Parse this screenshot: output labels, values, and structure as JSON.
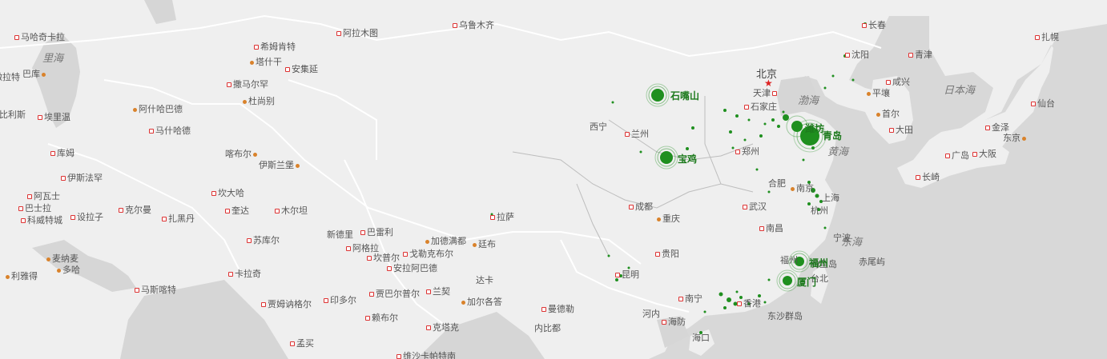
{
  "map": {
    "capital": {
      "name": "北京"
    },
    "seas": [
      "里海",
      "渤海",
      "黄海",
      "东海",
      "日本海"
    ],
    "cities": [
      "马哈奇卡拉",
      "希姆肯特",
      "阿拉木图",
      "乌鲁木齐",
      "长春",
      "扎幌",
      "塔什干",
      "安集延",
      "沈阳",
      "青津",
      "撒马尔罕",
      "杜尚别",
      "咸兴",
      "平壤",
      "仙台",
      "阿什哈巴德",
      "天津",
      "石家庄",
      "首尔",
      "大田",
      "金泽",
      "东京",
      "马什哈德",
      "西宁",
      "兰州",
      "广岛",
      "大阪",
      "喀布尔",
      "伊斯兰堡",
      "郑州",
      "长崎",
      "库姆",
      "伊斯法罕",
      "阿瓦士",
      "巴士拉",
      "科威特城",
      "设拉子",
      "克尔曼",
      "扎黑丹",
      "坎大哈",
      "奎达",
      "木尔坦",
      "合肥",
      "南京",
      "上海",
      "拉萨",
      "成都",
      "重庆",
      "杭州",
      "武汉",
      "新德里",
      "巴雷利",
      "加德满都",
      "廷布",
      "南昌",
      "阿格拉",
      "戈勒克布尔",
      "苏库尔",
      "坎普尔",
      "安拉阿巴德",
      "宁波",
      "赤尾屿",
      "钓鱼岛",
      "台北",
      "福州",
      "贵阳",
      "麦纳麦",
      "多哈",
      "卡拉奇",
      "达卡",
      "昆明",
      "利雅得",
      "马斯喀特",
      "贾姆讷格尔",
      "印多尔",
      "贾巴尔普尔",
      "兰契",
      "加尔各答",
      "曼德勒",
      "南宁",
      "香港",
      "东沙群岛",
      "赖布尔",
      "河内",
      "海防",
      "内比都",
      "克塔克",
      "海口",
      "孟买",
      "维沙卡帕特南",
      "巴库",
      "第比利斯",
      "埃里温",
      "撒拉特"
    ],
    "highlights": [
      {
        "name": "石嘴山",
        "level": 2
      },
      {
        "name": "宝鸡",
        "level": 2
      },
      {
        "name": "青岛",
        "level": 3
      },
      {
        "name": "潍坊",
        "level": 2
      },
      {
        "name": "福州",
        "level": 2
      },
      {
        "name": "厦门",
        "level": 2
      }
    ],
    "colors": {
      "land": "#f0f0f0",
      "water": "#d6d6d6",
      "border": "#ffffff",
      "highlight": "#1f8f1f"
    }
  }
}
